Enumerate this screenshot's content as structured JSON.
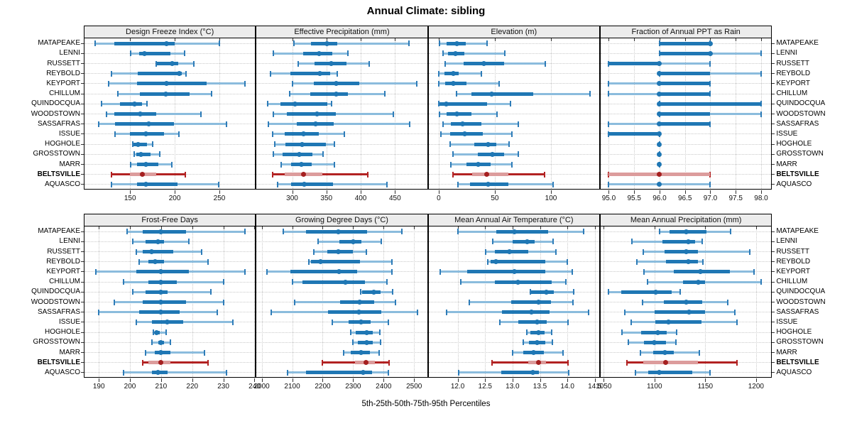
{
  "title": "Annual Climate: sibling",
  "caption": "5th-25th-50th-75th-95th Percentiles",
  "sites": [
    "MATAPEAKE",
    "LENNI",
    "RUSSETT",
    "REYBOLD",
    "KEYPORT",
    "CHILLUM",
    "QUINDOCQUA",
    "WOODSTOWN",
    "SASSAFRAS",
    "ISSUE",
    "HOGHOLE",
    "GROSSTOWN",
    "MARR",
    "BELTSVILLE",
    "AQUASCO"
  ],
  "highlight_site": "BELTSVILLE",
  "colors": {
    "blue": "#1f77b4",
    "blue_light": "#8bbcdd",
    "blue_cap": "#2e7cb8",
    "red": "#b22222",
    "red_light": "#dc9c9c",
    "red_dark": "#a51f1f",
    "grid": "#c9c9c9",
    "strip_bg": "#ececec",
    "border": "#000000",
    "tick": "#333333"
  },
  "chart_data": {
    "type": "percentile-dotplot-trellis",
    "percentiles": [
      5,
      25,
      50,
      75,
      95
    ],
    "layout": {
      "rows": 2,
      "cols": 4,
      "grid": "dotted",
      "row_labels_both_sides": true
    },
    "panels": [
      {
        "title": "Design Freeze Index (°C)",
        "ticks": [
          150,
          200,
          250
        ],
        "tick_labels": [
          "150",
          "200",
          "250"
        ],
        "xlim": [
          99,
          290
        ],
        "values": [
          [
            111,
            132,
            191,
            200,
            250
          ],
          [
            151,
            160,
            166,
            195,
            211
          ],
          [
            179,
            180,
            197,
            204,
            221
          ],
          [
            129,
            159,
            205,
            208,
            213
          ],
          [
            126,
            158,
            191,
            236,
            279
          ],
          [
            136,
            161,
            190,
            217,
            241
          ],
          [
            118,
            139,
            155,
            163,
            169
          ],
          [
            124,
            132,
            161,
            179,
            229
          ],
          [
            115,
            133,
            171,
            199,
            258
          ],
          [
            133,
            150,
            168,
            188,
            205
          ],
          [
            153,
            154,
            159,
            169,
            175
          ],
          [
            155,
            157,
            162,
            173,
            183
          ],
          [
            151,
            158,
            168,
            182,
            197
          ],
          [
            129,
            150,
            164,
            179,
            212
          ],
          [
            129,
            158,
            168,
            203,
            249
          ]
        ]
      },
      {
        "title": "Effective Precipitation (mm)",
        "ticks": [
          300,
          350,
          400,
          450
        ],
        "tick_labels": [
          "300",
          "350",
          "400",
          "450"
        ],
        "xlim": [
          248,
          497
        ],
        "values": [
          [
            303,
            327,
            351,
            366,
            470
          ],
          [
            273,
            316,
            339,
            359,
            381
          ],
          [
            309,
            333,
            357,
            379,
            412
          ],
          [
            268,
            297,
            340,
            355,
            366
          ],
          [
            301,
            332,
            364,
            398,
            482
          ],
          [
            296,
            326,
            364,
            381,
            435
          ],
          [
            264,
            283,
            304,
            351,
            358
          ],
          [
            273,
            292,
            336,
            364,
            448
          ],
          [
            265,
            307,
            334,
            361,
            471
          ],
          [
            272,
            289,
            317,
            339,
            376
          ],
          [
            275,
            290,
            315,
            349,
            362
          ],
          [
            273,
            286,
            310,
            329,
            345
          ],
          [
            284,
            298,
            313,
            328,
            362
          ],
          [
            271,
            289,
            317,
            344,
            410
          ],
          [
            279,
            298,
            318,
            360,
            438
          ]
        ]
      },
      {
        "title": "Elevation (m)",
        "ticks": [
          0,
          50,
          100
        ],
        "tick_labels": [
          "0",
          "50",
          "100"
        ],
        "xlim": [
          -9,
          143
        ],
        "values": [
          [
            1,
            7,
            16,
            24,
            43
          ],
          [
            4,
            8,
            15,
            23,
            59
          ],
          [
            6,
            22,
            40,
            58,
            95
          ],
          [
            0,
            5,
            13,
            18,
            38
          ],
          [
            0,
            6,
            13,
            25,
            54
          ],
          [
            16,
            29,
            47,
            84,
            135
          ],
          [
            0,
            1,
            7,
            43,
            64
          ],
          [
            1,
            7,
            16,
            29,
            52
          ],
          [
            4,
            11,
            21,
            38,
            71
          ],
          [
            2,
            10,
            23,
            39,
            65
          ],
          [
            10,
            32,
            44,
            51,
            63
          ],
          [
            13,
            35,
            48,
            58,
            71
          ],
          [
            11,
            25,
            35,
            46,
            65
          ],
          [
            13,
            30,
            43,
            62,
            94
          ],
          [
            17,
            28,
            44,
            62,
            102
          ]
        ]
      },
      {
        "title": "Fraction of Annual PPT as Rain",
        "ticks": [
          95,
          95.5,
          96,
          96.5,
          97,
          97.5,
          98
        ],
        "tick_labels": [
          "95.0",
          "95.5",
          "96.0",
          "96.5",
          "97.0",
          "97.5",
          "98.0"
        ],
        "xlim": [
          94.84,
          98.2
        ],
        "values": [
          [
            96,
            96,
            97,
            97,
            97
          ],
          [
            96,
            96,
            97,
            97,
            98
          ],
          [
            95,
            95,
            96,
            96,
            97
          ],
          [
            96,
            96,
            96,
            97,
            98
          ],
          [
            95,
            96,
            96,
            97,
            97
          ],
          [
            95,
            96,
            96,
            97,
            97
          ],
          [
            96,
            96,
            96,
            98,
            98
          ],
          [
            96,
            96,
            96,
            97,
            98
          ],
          [
            95,
            96,
            96,
            97,
            97
          ],
          [
            95,
            95,
            96,
            96,
            96
          ],
          [
            96,
            96,
            96,
            96,
            96
          ],
          [
            96,
            96,
            96,
            96,
            96
          ],
          [
            96,
            96,
            96,
            96,
            96
          ],
          [
            95,
            95,
            96,
            97,
            97
          ],
          [
            95,
            96,
            96,
            96,
            97
          ]
        ]
      },
      {
        "title": "Frost-Free Days",
        "ticks": [
          190,
          200,
          210,
          220,
          230,
          240
        ],
        "tick_labels": [
          "190",
          "200",
          "210",
          "220",
          "230",
          "240"
        ],
        "xlim": [
          185.4,
          240.2
        ],
        "values": [
          [
            199,
            204,
            210,
            218,
            237
          ],
          [
            201,
            205,
            209,
            211,
            219
          ],
          [
            202,
            204,
            207,
            214,
            223
          ],
          [
            203,
            206,
            208,
            211,
            225
          ],
          [
            189,
            202,
            210,
            219,
            237
          ],
          [
            198,
            206,
            210,
            215,
            230
          ],
          [
            201,
            205,
            210,
            212,
            226
          ],
          [
            195,
            204,
            210,
            218,
            230
          ],
          [
            190,
            203,
            210,
            216,
            228
          ],
          [
            202,
            207,
            212,
            217,
            233
          ],
          [
            207.5,
            208,
            208.6,
            209.5,
            211.6
          ],
          [
            207,
            209,
            210,
            211,
            213
          ],
          [
            205,
            208,
            210,
            213,
            224
          ],
          [
            204,
            206,
            210,
            213,
            225
          ],
          [
            198,
            207,
            209,
            212,
            231
          ]
        ]
      },
      {
        "title": "Growing Degree Days (°C)",
        "ticks": [
          2000,
          2100,
          2200,
          2300,
          2400,
          2500
        ],
        "tick_labels": [
          "2000",
          "2100",
          "2200",
          "2300",
          "2400",
          "2500"
        ],
        "xlim": [
          1983,
          2543
        ],
        "values": [
          [
            2070,
            2145,
            2252,
            2345,
            2460
          ],
          [
            2185,
            2254,
            2300,
            2326,
            2392
          ],
          [
            2172,
            2215,
            2252,
            2300,
            2344
          ],
          [
            2154,
            2162,
            2192,
            2323,
            2428
          ],
          [
            2018,
            2095,
            2254,
            2313,
            2428
          ],
          [
            2100,
            2134,
            2275,
            2338,
            2411
          ],
          [
            2325,
            2330,
            2369,
            2390,
            2430
          ],
          [
            2108,
            2257,
            2321,
            2369,
            2438
          ],
          [
            2032,
            2218,
            2318,
            2392,
            2511
          ],
          [
            2231,
            2285,
            2326,
            2357,
            2415
          ],
          [
            2292,
            2308,
            2344,
            2365,
            2388
          ],
          [
            2300,
            2315,
            2344,
            2365,
            2390
          ],
          [
            2269,
            2292,
            2326,
            2354,
            2385
          ],
          [
            2200,
            2305,
            2342,
            2372,
            2418
          ],
          [
            2085,
            2146,
            2334,
            2362,
            2415
          ]
        ]
      },
      {
        "title": "Mean Annual Air Temperature (°C)",
        "ticks": [
          12,
          12.5,
          13,
          13.5,
          14,
          14.5
        ],
        "tick_labels": [
          "12.0",
          "12.5",
          "13.0",
          "13.5",
          "14.0",
          "14.5"
        ],
        "xlim": [
          11.47,
          14.58
        ],
        "values": [
          [
            12.0,
            12.7,
            13.03,
            13.65,
            14.3
          ],
          [
            12.64,
            13.0,
            13.27,
            13.4,
            13.74
          ],
          [
            12.51,
            12.68,
            12.94,
            13.28,
            13.79
          ],
          [
            12.55,
            12.6,
            12.7,
            13.6,
            14.0
          ],
          [
            11.68,
            12.17,
            13.03,
            13.6,
            14.09
          ],
          [
            12.06,
            12.68,
            13.1,
            13.71,
            13.97
          ],
          [
            13.32,
            13.34,
            13.62,
            13.75,
            14.11
          ],
          [
            12.21,
            12.98,
            13.47,
            13.7,
            14.1
          ],
          [
            11.8,
            12.81,
            13.35,
            13.67,
            14.39
          ],
          [
            12.77,
            13.11,
            13.45,
            13.62,
            14.01
          ],
          [
            13.26,
            13.32,
            13.47,
            13.58,
            13.71
          ],
          [
            13.2,
            13.3,
            13.45,
            13.6,
            13.73
          ],
          [
            13.0,
            13.2,
            13.38,
            13.57,
            13.92
          ],
          [
            12.63,
            13.28,
            13.47,
            13.61,
            14.01
          ],
          [
            12.02,
            12.79,
            13.37,
            13.48,
            14.03
          ]
        ]
      },
      {
        "title": "Mean Annual Precipitation (mm)",
        "ticks": [
          1050,
          1100,
          1150,
          1200
        ],
        "tick_labels": [
          "1050",
          "1100",
          "1150",
          "1200"
        ],
        "xlim": [
          1047,
          1215
        ],
        "values": [
          [
            1105,
            1115,
            1131,
            1151,
            1175
          ],
          [
            1078,
            1108,
            1133,
            1140,
            1147
          ],
          [
            1089,
            1110,
            1131,
            1143,
            1194
          ],
          [
            1083,
            1111,
            1133,
            1143,
            1148
          ],
          [
            1090,
            1119,
            1145,
            1174,
            1198
          ],
          [
            1093,
            1128,
            1143,
            1150,
            1205
          ],
          [
            1055,
            1067,
            1101,
            1117,
            1125
          ],
          [
            1088,
            1109,
            1131,
            1147,
            1172
          ],
          [
            1071,
            1100,
            1134,
            1150,
            1179
          ],
          [
            1077,
            1101,
            1114,
            1146,
            1181
          ],
          [
            1068,
            1087,
            1103,
            1112,
            1122
          ],
          [
            1074,
            1090,
            1100,
            1111,
            1121
          ],
          [
            1086,
            1099,
            1110,
            1119,
            1144
          ],
          [
            1073,
            1089,
            1111,
            1143,
            1181
          ],
          [
            1081,
            1094,
            1105,
            1137,
            1155
          ]
        ]
      }
    ]
  }
}
